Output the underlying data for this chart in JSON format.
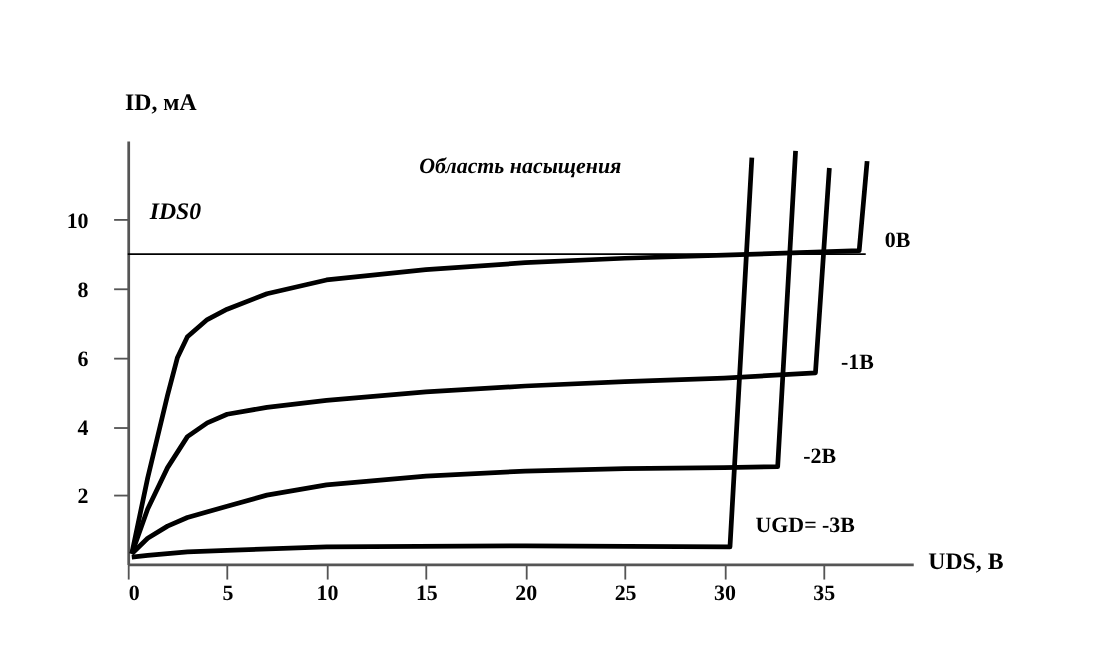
{
  "chart_data": {
    "type": "line",
    "xlabel": "UDS, В",
    "ylabel": "ID, мА",
    "xlim": [
      0,
      39.5
    ],
    "ylim": [
      0,
      12.3
    ],
    "xticks": [
      0,
      5,
      10,
      15,
      20,
      25,
      30,
      35
    ],
    "yticks": [
      2,
      4,
      6,
      8,
      10
    ],
    "grid": false,
    "marker": "none",
    "line_style": "solid",
    "series": [
      {
        "name": "0В",
        "color": "#000000",
        "x": [
          0.2,
          1,
          2,
          2.5,
          3,
          4,
          5,
          7,
          10,
          15,
          20,
          25,
          30,
          36.8,
          37.2
        ],
        "values": [
          0.3,
          2.5,
          4.9,
          6.0,
          6.6,
          7.1,
          7.4,
          7.85,
          8.25,
          8.55,
          8.75,
          8.88,
          8.97,
          9.1,
          11.7
        ]
      },
      {
        "name": "-1В",
        "color": "#000000",
        "x": [
          0.2,
          1,
          2,
          3,
          4,
          5,
          7,
          10,
          15,
          20,
          25,
          30,
          34.6,
          35.3
        ],
        "values": [
          0.3,
          1.6,
          2.8,
          3.7,
          4.1,
          4.35,
          4.55,
          4.75,
          5.0,
          5.17,
          5.3,
          5.4,
          5.55,
          11.5
        ]
      },
      {
        "name": "-2В",
        "color": "#000000",
        "x": [
          0.2,
          1,
          2,
          3,
          5,
          7,
          10,
          15,
          20,
          25,
          30,
          32.7,
          33.6
        ],
        "values": [
          0.3,
          0.75,
          1.1,
          1.35,
          1.68,
          2.0,
          2.3,
          2.55,
          2.7,
          2.77,
          2.8,
          2.83,
          12.0
        ]
      },
      {
        "name": "UGD= -3В",
        "color": "#000000",
        "x": [
          0.2,
          1,
          2,
          3,
          5,
          10,
          20,
          30.3,
          31.4
        ],
        "values": [
          0.2,
          0.25,
          0.3,
          0.35,
          0.4,
          0.5,
          0.53,
          0.5,
          11.8
        ]
      }
    ],
    "ref_lines": [
      {
        "axis": "y",
        "value": 9,
        "label": "IDS0",
        "color": "#000000",
        "line_style": "solid"
      }
    ],
    "annotations": [
      "Область насыщения"
    ]
  }
}
